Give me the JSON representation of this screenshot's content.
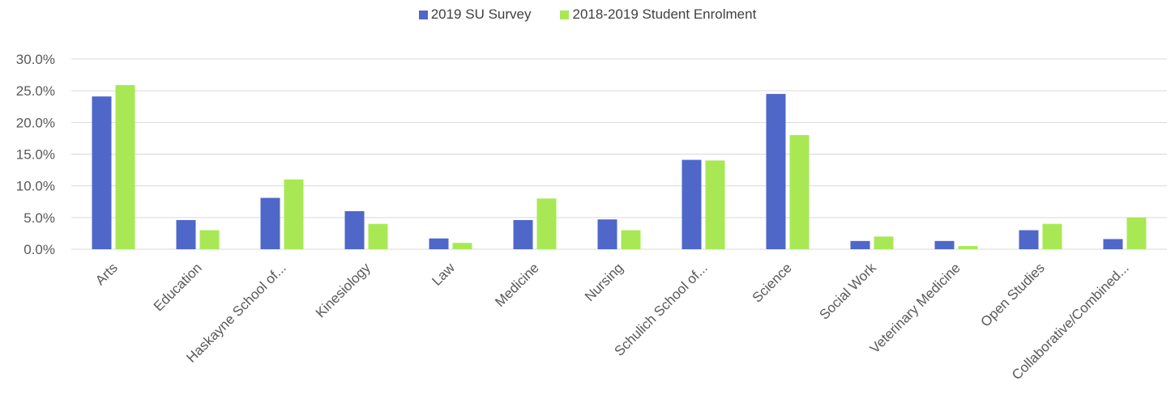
{
  "chart_data": {
    "type": "bar",
    "categories": [
      "Arts",
      "Education",
      "Haskayne School of...",
      "Kinesiology",
      "Law",
      "Medicine",
      "Nursing",
      "Schulich School of...",
      "Science",
      "Social Work",
      "Veterinary Medicine",
      "Open Studies",
      "Collaborative/Combined..."
    ],
    "series": [
      {
        "name": "2019 SU Survey",
        "color": "#4F67C9",
        "values": [
          24.1,
          4.6,
          8.1,
          6.0,
          1.7,
          4.6,
          4.7,
          14.1,
          24.5,
          1.3,
          1.3,
          3.0,
          1.6
        ]
      },
      {
        "name": "2018-2019 Student Enrolment",
        "color": "#A9E855",
        "values": [
          25.9,
          3.0,
          11.0,
          4.0,
          1.0,
          8.0,
          3.0,
          14.0,
          18.0,
          2.0,
          0.5,
          4.0,
          5.0
        ]
      }
    ],
    "ylim": [
      0,
      30
    ],
    "yticks": [
      "0.0%",
      "5.0%",
      "10.0%",
      "15.0%",
      "20.0%",
      "25.0%",
      "30.0%"
    ],
    "grid": true,
    "legend_position": "top-center"
  }
}
